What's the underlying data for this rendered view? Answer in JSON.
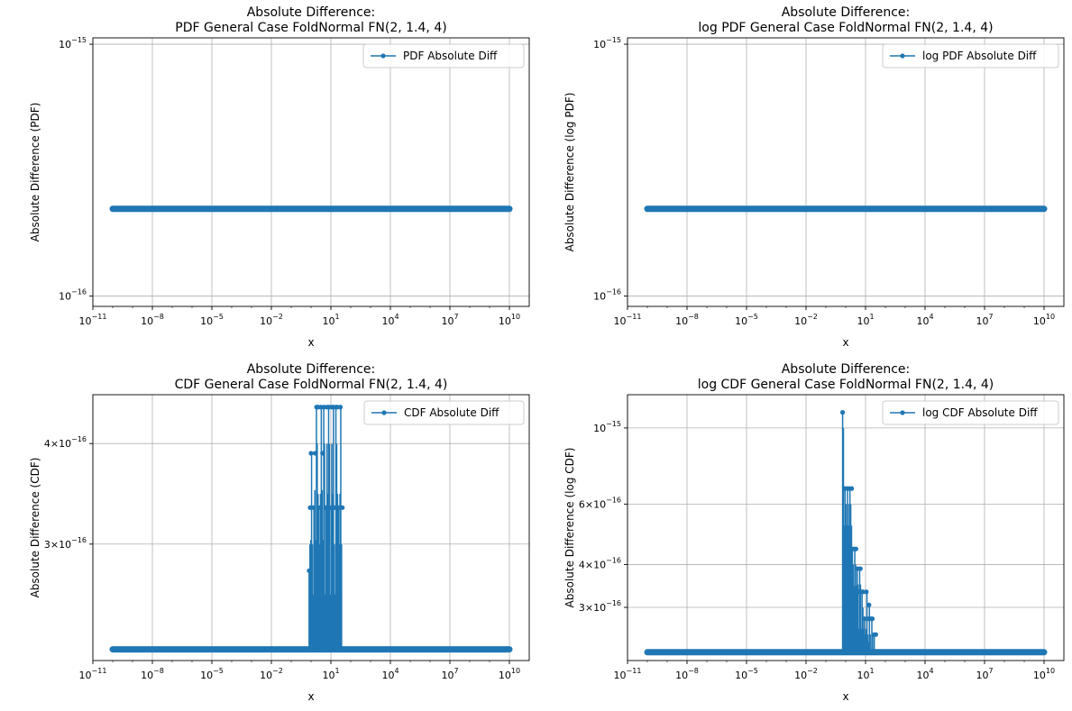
{
  "chart_data": [
    {
      "type": "line",
      "title_line1": "Absolute Difference:",
      "title_line2": "PDF General Case FoldNormal FN(2, 1.4, 4)",
      "xlabel": "x",
      "ylabel": "Absolute Difference (PDF)",
      "x_scale": "log",
      "y_scale": "log",
      "xlim": [
        1e-11,
        100000000000.0
      ],
      "ylim": [
        9.1e-17,
        1.06e-15
      ],
      "x_ticks": [
        {
          "value": 1e-11,
          "base": "10",
          "exp": "−11"
        },
        {
          "value": 1e-08,
          "base": "10",
          "exp": "−8"
        },
        {
          "value": 1e-05,
          "base": "10",
          "exp": "−5"
        },
        {
          "value": 0.01,
          "base": "10",
          "exp": "−2"
        },
        {
          "value": 10.0,
          "base": "10",
          "exp": "1"
        },
        {
          "value": 10000.0,
          "base": "10",
          "exp": "4"
        },
        {
          "value": 10000000.0,
          "base": "10",
          "exp": "7"
        },
        {
          "value": 10000000000.0,
          "base": "10",
          "exp": "10"
        }
      ],
      "y_ticks": [
        {
          "value": 1e-16,
          "mant": "",
          "base": "10",
          "exp": "−16"
        },
        {
          "value": 1e-15,
          "mant": "",
          "base": "10",
          "exp": "−15"
        }
      ],
      "grid": true,
      "legend_position": "top-right",
      "series": [
        {
          "name": "PDF Absolute Diff",
          "color": "#1f77b4",
          "x_range": [
            1e-10,
            10000000000.0
          ],
          "baseline": 2.22e-16,
          "spikes": []
        }
      ]
    },
    {
      "type": "line",
      "title_line1": "Absolute Difference:",
      "title_line2": "log PDF General Case FoldNormal FN(2, 1.4, 4)",
      "xlabel": "x",
      "ylabel": "Absolute Difference (log PDF)",
      "x_scale": "log",
      "y_scale": "log",
      "xlim": [
        1e-11,
        100000000000.0
      ],
      "ylim": [
        9.1e-17,
        1.06e-15
      ],
      "x_ticks": [
        {
          "value": 1e-11,
          "base": "10",
          "exp": "−11"
        },
        {
          "value": 1e-08,
          "base": "10",
          "exp": "−8"
        },
        {
          "value": 1e-05,
          "base": "10",
          "exp": "−5"
        },
        {
          "value": 0.01,
          "base": "10",
          "exp": "−2"
        },
        {
          "value": 10.0,
          "base": "10",
          "exp": "1"
        },
        {
          "value": 10000.0,
          "base": "10",
          "exp": "4"
        },
        {
          "value": 10000000.0,
          "base": "10",
          "exp": "7"
        },
        {
          "value": 10000000000.0,
          "base": "10",
          "exp": "10"
        }
      ],
      "y_ticks": [
        {
          "value": 1e-16,
          "mant": "",
          "base": "10",
          "exp": "−16"
        },
        {
          "value": 1e-15,
          "mant": "",
          "base": "10",
          "exp": "−15"
        }
      ],
      "grid": true,
      "legend_position": "top-right",
      "series": [
        {
          "name": "log PDF Absolute Diff",
          "color": "#1f77b4",
          "x_range": [
            1e-10,
            10000000000.0
          ],
          "baseline": 2.22e-16,
          "spikes": []
        }
      ]
    },
    {
      "type": "line",
      "title_line1": "Absolute Difference:",
      "title_line2": "CDF General Case FoldNormal FN(2, 1.4, 4)",
      "xlabel": "x",
      "ylabel": "Absolute Difference (CDF)",
      "x_scale": "log",
      "y_scale": "log",
      "xlim": [
        1e-11,
        100000000000.0
      ],
      "ylim": [
        2.15e-16,
        4.6e-16
      ],
      "x_ticks": [
        {
          "value": 1e-11,
          "base": "10",
          "exp": "−11"
        },
        {
          "value": 1e-08,
          "base": "10",
          "exp": "−8"
        },
        {
          "value": 1e-05,
          "base": "10",
          "exp": "−5"
        },
        {
          "value": 0.01,
          "base": "10",
          "exp": "−2"
        },
        {
          "value": 10.0,
          "base": "10",
          "exp": "1"
        },
        {
          "value": 10000.0,
          "base": "10",
          "exp": "4"
        },
        {
          "value": 10000000.0,
          "base": "10",
          "exp": "7"
        },
        {
          "value": 10000000000.0,
          "base": "10",
          "exp": "10"
        }
      ],
      "y_ticks": [
        {
          "value": 3e-16,
          "mant": "3",
          "base": "10",
          "exp": "−16"
        },
        {
          "value": 4e-16,
          "mant": "4",
          "base": "10",
          "exp": "−16"
        }
      ],
      "grid": true,
      "legend_position": "top-right",
      "series": [
        {
          "name": "CDF Absolute Diff",
          "color": "#1f77b4",
          "x_range": [
            1e-10,
            10000000000.0
          ],
          "baseline": 2.22e-16,
          "spikes": [
            {
              "x": 0.8,
              "y": 2.78e-16
            },
            {
              "x": 0.9,
              "y": 3.33e-16
            },
            {
              "x": 1.0,
              "y": 3.89e-16
            },
            {
              "x": 1.3,
              "y": 3.33e-16
            },
            {
              "x": 1.6,
              "y": 3.89e-16
            },
            {
              "x": 1.9,
              "y": 4.44e-16
            },
            {
              "x": 2.3,
              "y": 4.44e-16
            },
            {
              "x": 2.6,
              "y": 3.33e-16
            },
            {
              "x": 3.2,
              "y": 4.44e-16
            },
            {
              "x": 3.8,
              "y": 3.89e-16
            },
            {
              "x": 4.5,
              "y": 4.44e-16
            },
            {
              "x": 5.5,
              "y": 3.33e-16
            },
            {
              "x": 6.5,
              "y": 4.44e-16
            },
            {
              "x": 8.0,
              "y": 4.44e-16
            },
            {
              "x": 9.5,
              "y": 3.33e-16
            },
            {
              "x": 11,
              "y": 4.44e-16
            },
            {
              "x": 13,
              "y": 4.44e-16
            },
            {
              "x": 15,
              "y": 3.33e-16
            },
            {
              "x": 18,
              "y": 4.44e-16
            },
            {
              "x": 21,
              "y": 4.44e-16
            },
            {
              "x": 25,
              "y": 3.33e-16
            },
            {
              "x": 30,
              "y": 4.44e-16
            },
            {
              "x": 38,
              "y": 3.33e-16
            }
          ]
        }
      ]
    },
    {
      "type": "line",
      "title_line1": "Absolute Difference:",
      "title_line2": "log CDF General Case FoldNormal FN(2, 1.4, 4)",
      "xlabel": "x",
      "ylabel": "Absolute Difference (log CDF)",
      "x_scale": "log",
      "y_scale": "log",
      "xlim": [
        1e-11,
        100000000000.0
      ],
      "ylim": [
        2.1e-16,
        1.25e-15
      ],
      "x_ticks": [
        {
          "value": 1e-11,
          "base": "10",
          "exp": "−11"
        },
        {
          "value": 1e-08,
          "base": "10",
          "exp": "−8"
        },
        {
          "value": 1e-05,
          "base": "10",
          "exp": "−5"
        },
        {
          "value": 0.01,
          "base": "10",
          "exp": "−2"
        },
        {
          "value": 10.0,
          "base": "10",
          "exp": "1"
        },
        {
          "value": 10000.0,
          "base": "10",
          "exp": "4"
        },
        {
          "value": 10000000.0,
          "base": "10",
          "exp": "7"
        },
        {
          "value": 10000000000.0,
          "base": "10",
          "exp": "10"
        }
      ],
      "y_ticks": [
        {
          "value": 3e-16,
          "mant": "3",
          "base": "10",
          "exp": "−16"
        },
        {
          "value": 4e-16,
          "mant": "4",
          "base": "10",
          "exp": "−16"
        },
        {
          "value": 6e-16,
          "mant": "6",
          "base": "10",
          "exp": "−16"
        },
        {
          "value": 1e-15,
          "mant": "",
          "base": "10",
          "exp": "−15"
        }
      ],
      "grid": true,
      "legend_position": "top-right",
      "series": [
        {
          "name": "log CDF Absolute Diff",
          "color": "#1f77b4",
          "x_range": [
            1e-10,
            10000000000.0
          ],
          "baseline": 2.22e-16,
          "spikes": [
            {
              "x": 0.7,
              "y": 1.11e-15
            },
            {
              "x": 0.9,
              "y": 6.66e-16
            },
            {
              "x": 1.2,
              "y": 6.66e-16
            },
            {
              "x": 1.5,
              "y": 6.66e-16
            },
            {
              "x": 2.0,
              "y": 6.66e-16
            },
            {
              "x": 2.3,
              "y": 4.44e-16
            },
            {
              "x": 2.8,
              "y": 4.44e-16
            },
            {
              "x": 3.3,
              "y": 4.44e-16
            },
            {
              "x": 4.0,
              "y": 3.89e-16
            },
            {
              "x": 4.6,
              "y": 3.33e-16
            },
            {
              "x": 5.5,
              "y": 3.89e-16
            },
            {
              "x": 6.5,
              "y": 3.33e-16
            },
            {
              "x": 7.5,
              "y": 3.33e-16
            },
            {
              "x": 9,
              "y": 2.78e-16
            },
            {
              "x": 11,
              "y": 3.33e-16
            },
            {
              "x": 13,
              "y": 2.78e-16
            },
            {
              "x": 15,
              "y": 3.05e-16
            },
            {
              "x": 18,
              "y": 2.78e-16
            },
            {
              "x": 22,
              "y": 2.78e-16
            },
            {
              "x": 27,
              "y": 2.5e-16
            },
            {
              "x": 33,
              "y": 2.5e-16
            }
          ]
        }
      ]
    }
  ]
}
